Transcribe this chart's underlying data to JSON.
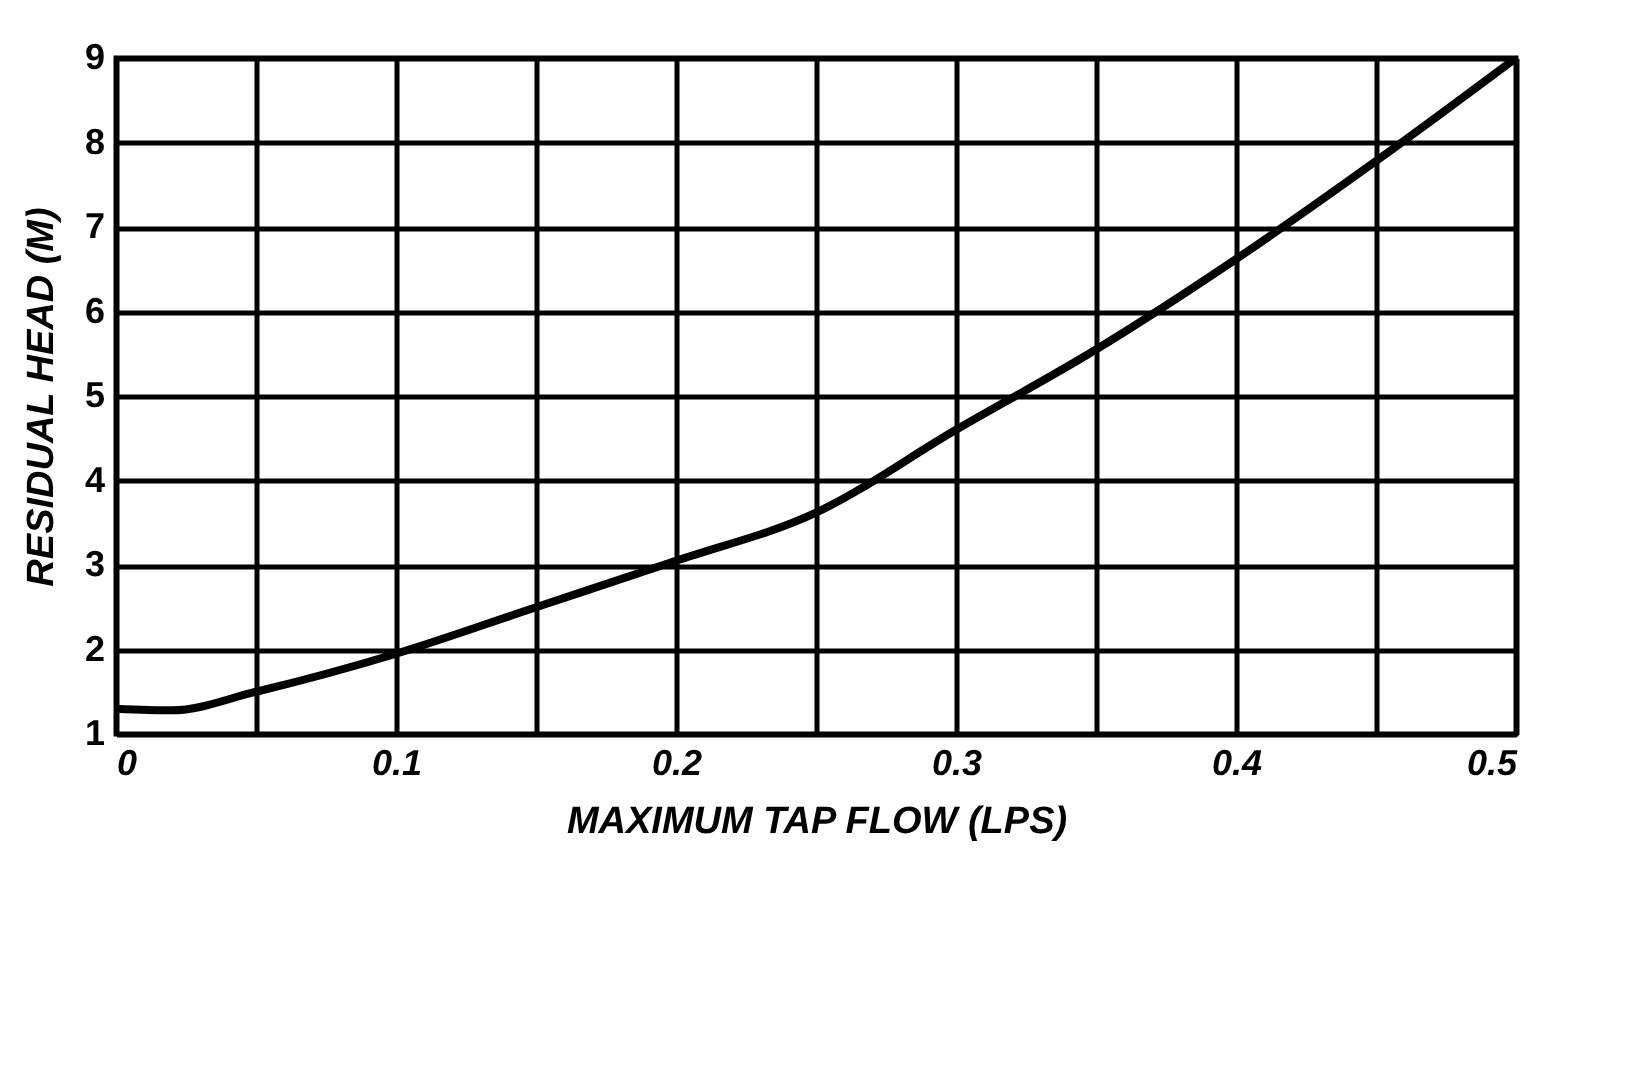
{
  "chart_data": {
    "type": "line",
    "xlabel": "MAXIMUM TAP FLOW (LPS)",
    "ylabel": "RESIDUAL HEAD (M)",
    "x": [
      0,
      0.02,
      0.05,
      0.1,
      0.15,
      0.2,
      0.25,
      0.3,
      0.35,
      0.4,
      0.45,
      0.5
    ],
    "series": [
      {
        "color": "#000000",
        "values": [
          1.3,
          1.28,
          1.5,
          1.95,
          2.5,
          3.05,
          3.62,
          4.6,
          5.55,
          6.62,
          7.78,
          9
        ]
      }
    ],
    "xlim": [
      0,
      0.5
    ],
    "ylim": [
      1,
      9
    ],
    "xticks": [
      0,
      {
        "value": 0.05,
        "label": null
      },
      0.1,
      {
        "value": 0.15,
        "label": null
      },
      0.2,
      {
        "value": 0.25,
        "label": null
      },
      0.3,
      {
        "value": 0.35,
        "label": null
      },
      0.4,
      {
        "value": 0.45,
        "label": null
      },
      0.5
    ],
    "yticks": [
      1,
      2,
      3,
      4,
      5,
      6,
      7,
      8,
      9
    ],
    "grid": true,
    "marker": "none",
    "line_style": "solid"
  }
}
